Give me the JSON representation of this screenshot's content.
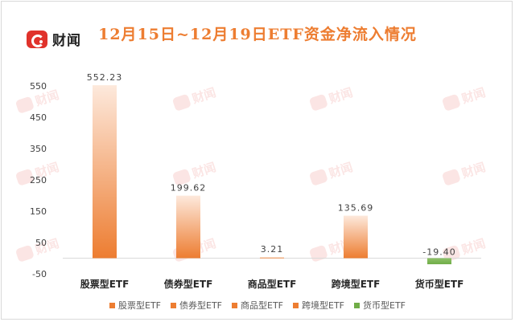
{
  "brand": {
    "logo_text": "财闻"
  },
  "watermark_text": "财闻",
  "colors": {
    "orange": "#ed7d31",
    "orange_light": "#fbe5d6",
    "green": "#70ad47",
    "axis": "#d9d9d9",
    "text": "#404040"
  },
  "chart_data": {
    "type": "bar",
    "title": "12月15日~12月19日ETF资金净流入情况",
    "categories": [
      "股票型ETF",
      "债券型ETF",
      "商品型ETF",
      "跨境型ETF",
      "货币型ETF"
    ],
    "values": [
      552.23,
      199.62,
      3.21,
      135.69,
      -19.4
    ],
    "value_labels": [
      "552.23",
      "199.62",
      "3.21",
      "135.69",
      "-19.40"
    ],
    "legend": [
      "股票型ETF",
      "债券型ETF",
      "商品型ETF",
      "跨境型ETF",
      "货币型ETF"
    ],
    "legend_position": "bottom",
    "ylim": [
      -50,
      550
    ],
    "yticks": [
      -50,
      50,
      150,
      250,
      350,
      450,
      550
    ],
    "ytick_labels": [
      "-50",
      "50",
      "150",
      "250",
      "350",
      "450",
      "550"
    ],
    "grid": false,
    "xlabel": "",
    "ylabel": ""
  }
}
